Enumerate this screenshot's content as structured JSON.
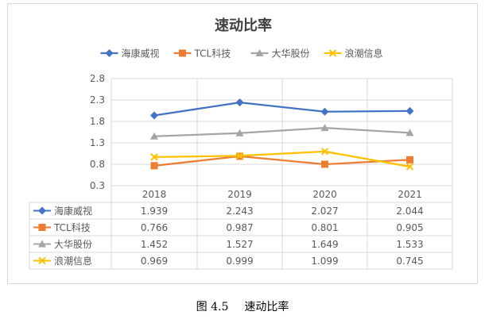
{
  "chart_data": {
    "type": "line",
    "title": "速动比率",
    "categories": [
      "2018",
      "2019",
      "2020",
      "2021"
    ],
    "y_ticks": [
      "2.8",
      "2.3",
      "1.8",
      "1.3",
      "0.8",
      "0.3"
    ],
    "ylim": [
      0.3,
      2.8
    ],
    "grid": true,
    "legend_position": "top",
    "series": [
      {
        "name": "海康威视",
        "values": [
          1.939,
          2.243,
          2.027,
          2.044
        ],
        "labels": [
          "1.939",
          "2.243",
          "2.027",
          "2.044"
        ],
        "color": "#4472C4",
        "marker": "diamond"
      },
      {
        "name": "TCL科技",
        "values": [
          0.766,
          0.987,
          0.801,
          0.905
        ],
        "labels": [
          "0.766",
          "0.987",
          "0.801",
          "0.905"
        ],
        "color": "#ED7D31",
        "marker": "square"
      },
      {
        "name": "大华股份",
        "values": [
          1.452,
          1.527,
          1.649,
          1.533
        ],
        "labels": [
          "1.452",
          "1.527",
          "1.649",
          "1.533"
        ],
        "color": "#A5A5A5",
        "marker": "triangle"
      },
      {
        "name": "浪潮信息",
        "values": [
          0.969,
          0.999,
          1.099,
          0.745
        ],
        "labels": [
          "0.969",
          "0.999",
          "1.099",
          "0.745"
        ],
        "color": "#FFC000",
        "marker": "x"
      }
    ]
  },
  "caption": {
    "figure_number": "图 4.5",
    "text": "速动比率"
  }
}
